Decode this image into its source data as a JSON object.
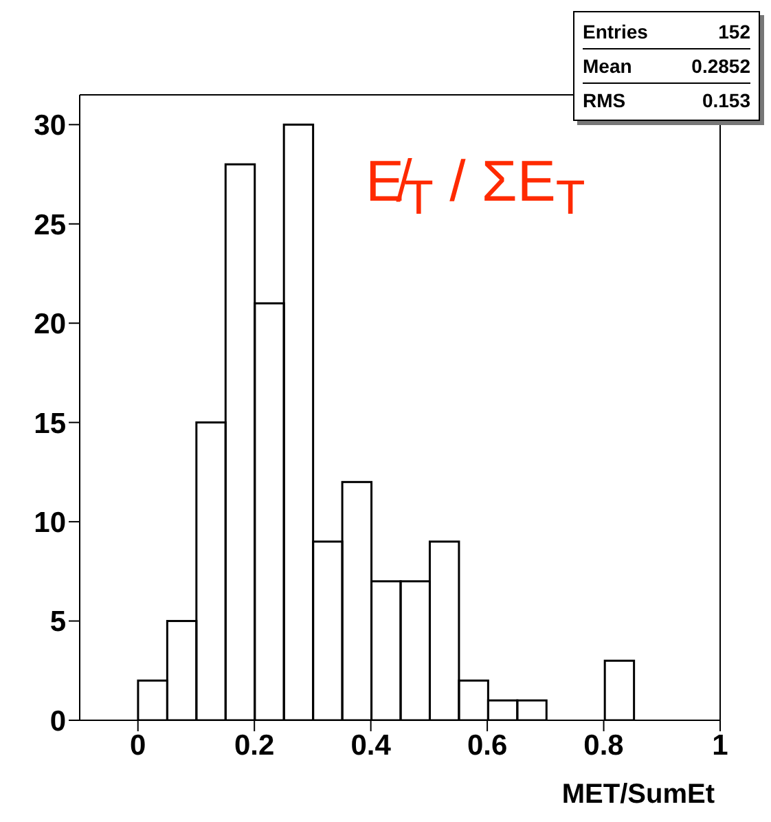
{
  "chart_data": {
    "type": "histogram",
    "xlabel": "MET/SumEt",
    "bins": [
      0,
      0.05,
      0.1,
      0.15,
      0.2,
      0.25,
      0.3,
      0.35,
      0.4,
      0.45,
      0.5,
      0.55,
      0.6,
      0.65,
      0.7,
      0.75,
      0.8,
      0.85,
      0.9,
      0.95,
      1
    ],
    "values": [
      2,
      5,
      15,
      28,
      21,
      30,
      9,
      12,
      7,
      7,
      9,
      2,
      1,
      1,
      0,
      0,
      3,
      0,
      0,
      0
    ],
    "color": "#000000",
    "xlim": [
      -0.1,
      1
    ],
    "xticks": [
      0,
      0.2,
      0.4,
      0.6,
      0.8,
      1
    ],
    "ylim": [
      0,
      31.5
    ],
    "yticks": [
      0,
      5,
      10,
      15,
      20,
      25,
      30
    ],
    "annotations": [
      "Entries 152",
      "Mean 0.2852",
      "RMS 0.153",
      {
        "text": "E̸$_{T}$ / ΣE$_{T}$"
      }
    ]
  }
}
